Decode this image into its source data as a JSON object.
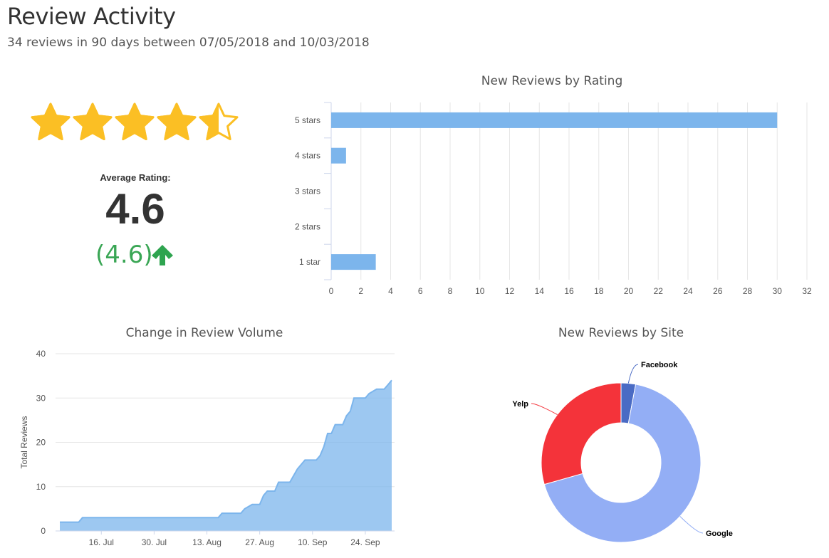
{
  "header": {
    "title": "Review Activity",
    "subtitle": "34 reviews in 90 days between 07/05/2018 and 10/03/2018"
  },
  "rating_summary": {
    "stars_value": 4.6,
    "stars_max": 5,
    "average_label": "Average Rating:",
    "average_value": "4.6",
    "previous_value": "(4.6)",
    "trend": "up",
    "trend_icon": "arrow-up-icon",
    "star_color": "#fbbf24",
    "trend_color": "#2ea44f"
  },
  "chart_data": [
    {
      "type": "bar",
      "orientation": "horizontal",
      "title": "New Reviews by Rating",
      "categories": [
        "5 stars",
        "4 stars",
        "3 stars",
        "2 stars",
        "1 star"
      ],
      "values": [
        30,
        1,
        0,
        0,
        3
      ],
      "xlim": [
        0,
        32
      ],
      "x_ticks": [
        0,
        2,
        4,
        6,
        8,
        10,
        12,
        14,
        16,
        18,
        20,
        22,
        24,
        26,
        28,
        30,
        32
      ],
      "grid": true,
      "color": "#7cb5ec"
    },
    {
      "type": "area",
      "title": "Change in Review Volume",
      "ylabel": "Total Reviews",
      "ylim": [
        0,
        40
      ],
      "y_ticks": [
        0,
        10,
        20,
        30,
        40
      ],
      "x_tick_labels": [
        "16. Jul",
        "30. Jul",
        "13. Aug",
        "27. Aug",
        "10. Sep",
        "24. Sep"
      ],
      "x_tick_dates": [
        "2018-07-16",
        "2018-07-30",
        "2018-08-13",
        "2018-08-27",
        "2018-09-10",
        "2018-09-24"
      ],
      "x_range": [
        "2018-07-05",
        "2018-10-03"
      ],
      "color": "#7cb5ec",
      "points": [
        [
          "2018-07-05",
          2
        ],
        [
          "2018-07-10",
          2
        ],
        [
          "2018-07-11",
          3
        ],
        [
          "2018-08-16",
          3
        ],
        [
          "2018-08-17",
          4
        ],
        [
          "2018-08-22",
          4
        ],
        [
          "2018-08-23",
          5
        ],
        [
          "2018-08-25",
          6
        ],
        [
          "2018-08-27",
          6
        ],
        [
          "2018-08-28",
          8
        ],
        [
          "2018-08-29",
          9
        ],
        [
          "2018-08-31",
          9
        ],
        [
          "2018-09-01",
          11
        ],
        [
          "2018-09-04",
          11
        ],
        [
          "2018-09-06",
          14
        ],
        [
          "2018-09-08",
          16
        ],
        [
          "2018-09-11",
          16
        ],
        [
          "2018-09-12",
          17
        ],
        [
          "2018-09-13",
          19
        ],
        [
          "2018-09-14",
          22
        ],
        [
          "2018-09-15",
          22
        ],
        [
          "2018-09-16",
          24
        ],
        [
          "2018-09-18",
          24
        ],
        [
          "2018-09-19",
          26
        ],
        [
          "2018-09-20",
          27
        ],
        [
          "2018-09-21",
          30
        ],
        [
          "2018-09-24",
          30
        ],
        [
          "2018-09-25",
          31
        ],
        [
          "2018-09-27",
          32
        ],
        [
          "2018-09-29",
          32
        ],
        [
          "2018-09-30",
          33
        ],
        [
          "2018-10-01",
          34
        ]
      ]
    },
    {
      "type": "pie",
      "subtype": "donut",
      "title": "New Reviews by Site",
      "slices": [
        {
          "name": "Facebook",
          "value": 1,
          "color": "#4a6bc4"
        },
        {
          "name": "Google",
          "value": 23,
          "color": "#93aef5"
        },
        {
          "name": "Yelp",
          "value": 10,
          "color": "#f4333a"
        }
      ]
    }
  ]
}
